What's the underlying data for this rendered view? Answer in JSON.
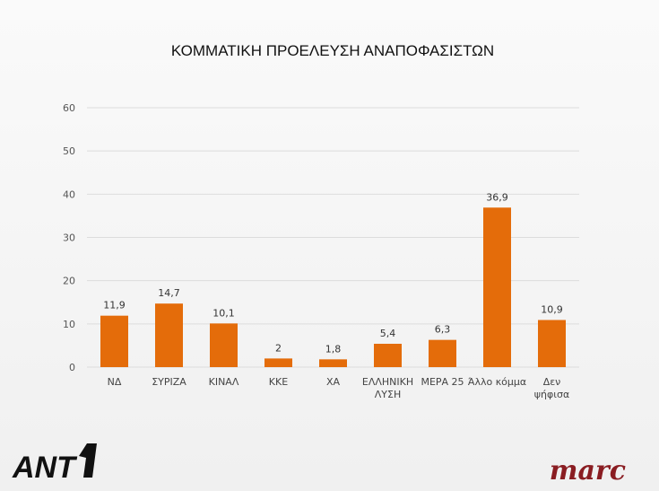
{
  "chart_data": {
    "type": "bar",
    "title": "ΚΟΜΜΑΤΙΚΗ ΠΡΟΕΛΕΥΣΗ ΑΝΑΠΟΦΑΣΙΣΤΩΝ",
    "categories": [
      [
        "ΝΔ"
      ],
      [
        "ΣΥΡΙΖΑ"
      ],
      [
        "ΚΙΝΑΛ"
      ],
      [
        "ΚΚΕ"
      ],
      [
        "ΧΑ"
      ],
      [
        "ΕΛΛΗΝΙΚΗ",
        "ΛΥΣΗ"
      ],
      [
        "ΜΕΡΑ 25"
      ],
      [
        "Άλλο κόμμα"
      ],
      [
        "Δεν",
        "ψήφισα"
      ]
    ],
    "values": [
      11.9,
      14.7,
      10.1,
      2,
      1.8,
      5.4,
      6.3,
      36.9,
      10.9
    ],
    "data_labels": [
      "11,9",
      "14,7",
      "10,1",
      "2",
      "1,8",
      "5,4",
      "6,3",
      "36,9",
      "10,9"
    ],
    "ylim": [
      0,
      60
    ],
    "yticks": [
      0,
      10,
      20,
      30,
      40,
      50,
      60
    ],
    "xlabel": "",
    "ylabel": "",
    "grid": true,
    "bar_color": "#e46c0a"
  },
  "logos": {
    "left": "ANT1",
    "right": "marc"
  }
}
